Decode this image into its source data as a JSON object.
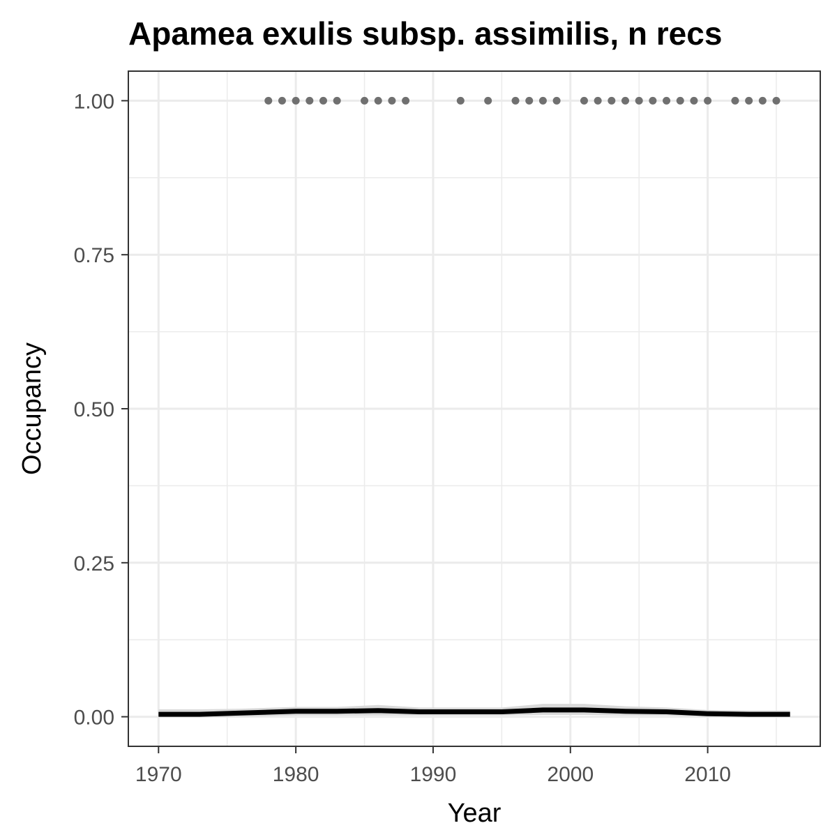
{
  "chart_data": {
    "type": "line",
    "title": "Apamea exulis subsp. assimilis, n recs",
    "xlabel": "Year",
    "ylabel": "Occupancy",
    "xlim": [
      1967.8,
      2018.2
    ],
    "ylim": [
      -0.048,
      1.048
    ],
    "x_ticks": [
      1970,
      1980,
      1990,
      2000,
      2010
    ],
    "x_tick_labels": [
      "1970",
      "1980",
      "1990",
      "2000",
      "2010"
    ],
    "x_minor_ticks": [
      1975,
      1985,
      1995,
      2005,
      2015
    ],
    "y_ticks": [
      0.0,
      0.25,
      0.5,
      0.75,
      1.0
    ],
    "y_tick_labels": [
      "0.00",
      "0.25",
      "0.50",
      "0.75",
      "1.00"
    ],
    "y_minor_ticks": [
      0.125,
      0.375,
      0.625,
      0.875
    ],
    "grid": true,
    "legend": "none",
    "colors": {
      "trend_line": "#000000",
      "ribbon": "#d9d9d9",
      "points": "#707070",
      "grid": "#ebebeb",
      "panel_border": "#333333"
    },
    "series": [
      {
        "kind": "line",
        "x": [
          1970,
          1973,
          1976,
          1980,
          1983,
          1986,
          1989,
          1992,
          1995,
          1998,
          2001,
          2004,
          2007,
          2010,
          2013,
          2016
        ],
        "y": [
          0.004,
          0.004,
          0.006,
          0.009,
          0.009,
          0.01,
          0.008,
          0.008,
          0.008,
          0.011,
          0.011,
          0.009,
          0.008,
          0.005,
          0.004,
          0.004
        ],
        "lower": [
          0.0,
          0.0,
          0.0,
          0.002,
          0.002,
          0.002,
          0.002,
          0.002,
          0.002,
          0.003,
          0.003,
          0.002,
          0.002,
          0.0,
          0.0,
          0.0
        ],
        "upper": [
          0.012,
          0.012,
          0.013,
          0.016,
          0.016,
          0.019,
          0.015,
          0.015,
          0.015,
          0.021,
          0.021,
          0.017,
          0.015,
          0.011,
          0.01,
          0.01
        ]
      },
      {
        "kind": "points",
        "x": [
          1978,
          1979,
          1980,
          1981,
          1982,
          1983,
          1985,
          1986,
          1987,
          1988,
          1992,
          1994,
          1996,
          1997,
          1998,
          1999,
          2001,
          2002,
          2003,
          2004,
          2005,
          2006,
          2007,
          2008,
          2009,
          2010,
          2012,
          2013,
          2014,
          2015
        ],
        "y": [
          1,
          1,
          1,
          1,
          1,
          1,
          1,
          1,
          1,
          1,
          1,
          1,
          1,
          1,
          1,
          1,
          1,
          1,
          1,
          1,
          1,
          1,
          1,
          1,
          1,
          1,
          1,
          1,
          1,
          1
        ]
      }
    ]
  }
}
